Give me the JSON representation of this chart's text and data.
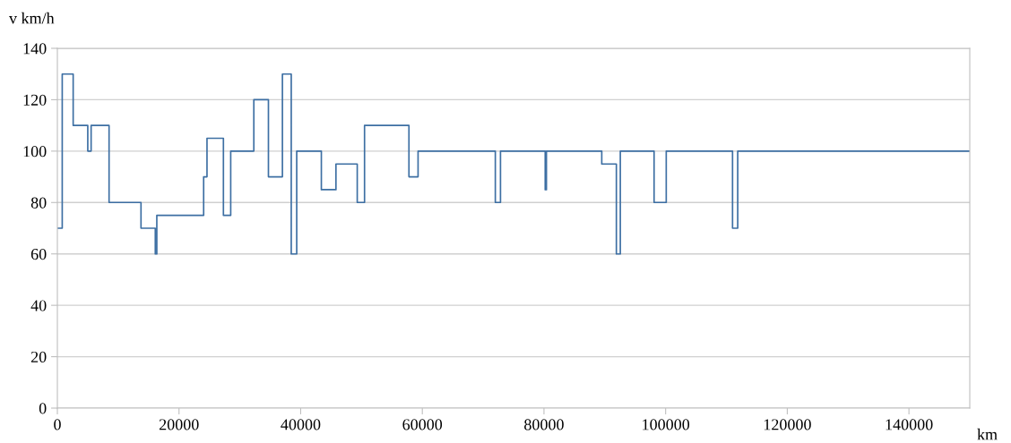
{
  "chart_data": {
    "type": "step",
    "xlabel": "km",
    "ylabel": "v km/h",
    "x": [
      0,
      800,
      2600,
      5000,
      5550,
      8500,
      13750,
      16100,
      16350,
      24050,
      24600,
      27300,
      28500,
      32300,
      34700,
      37000,
      38450,
      39350,
      43400,
      45800,
      49300,
      50500,
      57800,
      59300,
      72000,
      72850,
      80200,
      80400,
      89500,
      91900,
      92550,
      98100,
      100100,
      111000,
      111850,
      150000
    ],
    "series": [
      {
        "color": "#3d6fa3",
        "values": [
          70,
          130,
          110,
          100,
          110,
          80,
          70,
          60,
          75,
          90,
          105,
          75,
          100,
          120,
          90,
          130,
          60,
          100,
          85,
          95,
          80,
          110,
          90,
          100,
          80,
          100,
          85,
          100,
          95,
          60,
          100,
          80,
          100,
          70,
          100,
          100
        ]
      }
    ],
    "xlim": [
      0,
      150000
    ],
    "ylim": [
      0,
      140
    ],
    "xticks": [
      0,
      20000,
      40000,
      60000,
      80000,
      100000,
      120000,
      140000
    ],
    "yticks": [
      0,
      20,
      40,
      60,
      80,
      100,
      120,
      140
    ],
    "grid": "y",
    "marker": "none",
    "line_style": "solid"
  }
}
